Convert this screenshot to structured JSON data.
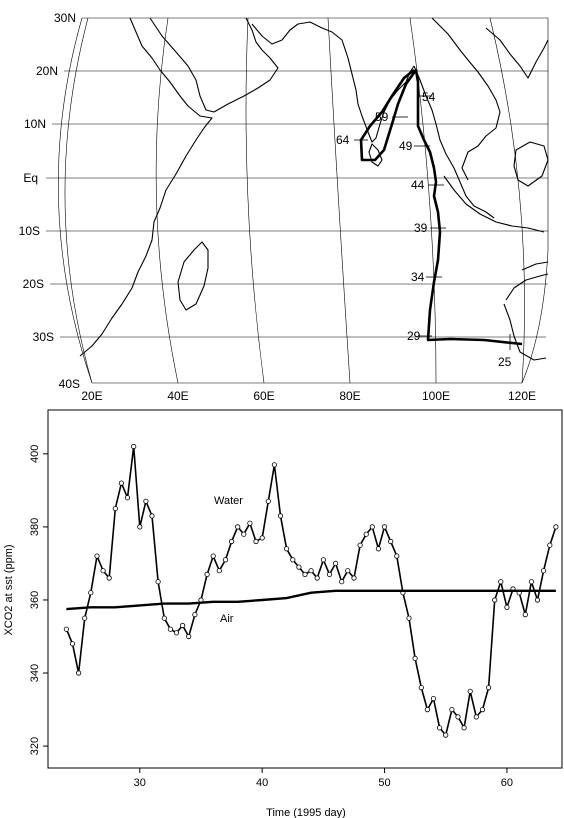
{
  "map": {
    "lat_labels": [
      "30N",
      "20N",
      "10N",
      "Eq",
      "10S",
      "20S",
      "30S",
      "40S"
    ],
    "lon_labels": [
      "20E",
      "40E",
      "60E",
      "80E",
      "100E",
      "120E"
    ],
    "track_labels": [
      "25",
      "29",
      "34",
      "39",
      "44",
      "49",
      "54",
      "59",
      "64"
    ],
    "track_color": "#000000",
    "coast_color": "#000000"
  },
  "chart_data": {
    "type": "scatter",
    "xlabel": "Time (1995 day)",
    "ylabel": "XCO2 at sst (ppm)",
    "x_ticks": [
      "30",
      "40",
      "50",
      "60"
    ],
    "y_ticks": [
      "320",
      "340",
      "360",
      "380",
      "400"
    ],
    "xlim": [
      22.5,
      64.5
    ],
    "ylim": [
      314,
      412
    ],
    "annotations": [
      "Water",
      "Air"
    ],
    "series": [
      {
        "name": "Water",
        "x": [
          24,
          24.5,
          25,
          25.5,
          26,
          26.5,
          27,
          27.5,
          28,
          28.5,
          29,
          29.5,
          30,
          30.5,
          31,
          31.5,
          32,
          32.5,
          33,
          33.5,
          34,
          34.5,
          35,
          35.5,
          36,
          36.5,
          37,
          37.5,
          38,
          38.5,
          39,
          39.5,
          40,
          40.5,
          41,
          41.5,
          42,
          42.5,
          43,
          43.5,
          44,
          44.5,
          45,
          45.5,
          46,
          46.5,
          47,
          47.5,
          48,
          48.5,
          49,
          49.5,
          50,
          50.5,
          51,
          51.5,
          52,
          52.5,
          53,
          53.5,
          54,
          54.5,
          55,
          55.5,
          56,
          56.5,
          57,
          57.5,
          58,
          58.5,
          59,
          59.5,
          60,
          60.5,
          61,
          61.5,
          62,
          62.5,
          63,
          63.5,
          64
        ],
        "y": [
          352,
          348,
          340,
          355,
          362,
          372,
          368,
          366,
          385,
          392,
          388,
          402,
          380,
          387,
          383,
          365,
          355,
          352,
          351,
          353,
          350,
          356,
          360,
          367,
          372,
          368,
          371,
          376,
          380,
          378,
          381,
          376,
          377,
          387,
          397,
          383,
          374,
          371,
          369,
          367,
          368,
          366,
          371,
          367,
          370,
          365,
          368,
          366,
          375,
          378,
          380,
          374,
          380,
          376,
          372,
          362,
          355,
          344,
          336,
          330,
          333,
          325,
          323,
          330,
          328,
          325,
          335,
          328,
          330,
          336,
          360,
          365,
          358,
          363,
          362,
          356,
          365,
          360,
          368,
          375,
          380
        ]
      },
      {
        "name": "Air",
        "x": [
          24,
          26,
          28,
          30,
          32,
          34,
          36,
          38,
          40,
          42,
          44,
          46,
          48,
          50,
          52,
          54,
          56,
          58,
          60,
          62,
          64
        ],
        "y": [
          357.5,
          358,
          358,
          358.5,
          359,
          359,
          359.5,
          359.5,
          360,
          360.5,
          362,
          362.5,
          362.5,
          362.5,
          362.5,
          362.5,
          362.5,
          362.5,
          362.5,
          362.5,
          362.5
        ]
      }
    ]
  }
}
